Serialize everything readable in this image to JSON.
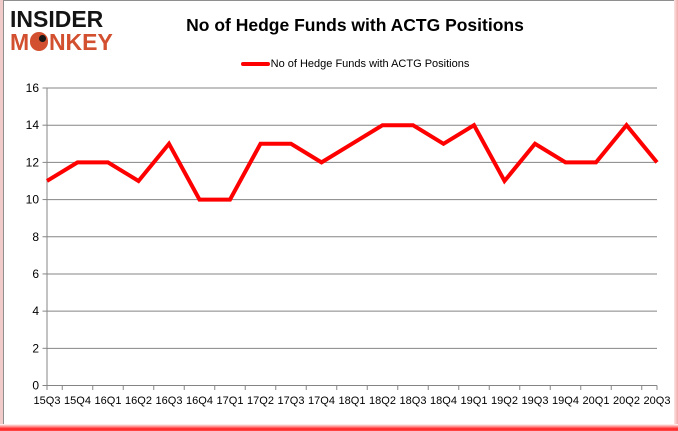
{
  "logo": {
    "line1": "INSIDER",
    "line2": "MONKEY",
    "line1_color": "#141414",
    "line2_color": "#d2502f"
  },
  "header": {
    "title": "No of Hedge Funds with ACTG Positions"
  },
  "legend": {
    "label": "No of Hedge Funds with ACTG Positions",
    "swatch_color": "#fe0000"
  },
  "chart_data": {
    "type": "line",
    "title": "No of Hedge Funds with ACTG Positions",
    "categories": [
      "15Q3",
      "15Q4",
      "16Q1",
      "16Q2",
      "16Q3",
      "16Q4",
      "17Q1",
      "17Q2",
      "17Q3",
      "17Q4",
      "18Q1",
      "18Q2",
      "18Q3",
      "18Q4",
      "19Q1",
      "19Q2",
      "19Q3",
      "19Q4",
      "20Q1",
      "20Q2",
      "20Q3"
    ],
    "series": [
      {
        "name": "No of Hedge Funds with ACTG Positions",
        "color": "#fe0000",
        "values": [
          11,
          12,
          12,
          11,
          13,
          10,
          10,
          13,
          13,
          12,
          13,
          14,
          14,
          13,
          14,
          11,
          13,
          12,
          12,
          14,
          12
        ]
      }
    ],
    "xlabel": "",
    "ylabel": "",
    "ylim": [
      0,
      16
    ],
    "y_ticks": [
      0,
      2,
      4,
      6,
      8,
      10,
      12,
      14,
      16
    ],
    "grid": true,
    "legend_position": "top",
    "gridline_color": "#858585",
    "axis_color": "#858585",
    "tick_label_color": "#000000"
  }
}
